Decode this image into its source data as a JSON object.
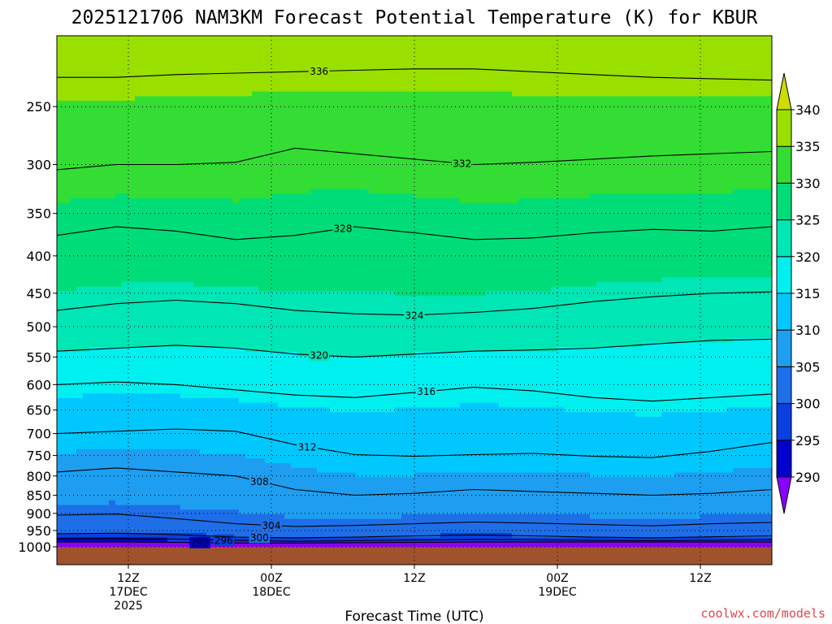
{
  "chart_data": {
    "type": "heatmap",
    "title": "2025121706 NAM3KM Forecast Potential Temperature (K) for KBUR",
    "xlabel": "Forecast Time (UTC)",
    "ylabel": "",
    "credit": "coolwx.com/models",
    "y_axis": {
      "scale": "log",
      "inverted": true,
      "ylim": [
        1000,
        200
      ],
      "ticks": [
        250,
        300,
        350,
        400,
        450,
        500,
        550,
        600,
        650,
        700,
        750,
        800,
        850,
        900,
        950,
        1000
      ]
    },
    "x_axis": {
      "ticks": [
        {
          "hour": 6,
          "line1": "12Z",
          "line2": "17DEC",
          "line3": "2025"
        },
        {
          "hour": 18,
          "line1": "00Z",
          "line2": "18DEC",
          "line3": ""
        },
        {
          "hour": 30,
          "line1": "12Z",
          "line2": "",
          "line3": ""
        },
        {
          "hour": 42,
          "line1": "00Z",
          "line2": "19DEC",
          "line3": ""
        },
        {
          "hour": 54,
          "line1": "12Z",
          "line2": "",
          "line3": ""
        }
      ],
      "xlim": [
        0,
        60
      ]
    },
    "grid": true,
    "surface_fill_color": "#a0522d",
    "colorbar": {
      "placement": "right",
      "levels": [
        290,
        295,
        300,
        305,
        310,
        315,
        320,
        325,
        330,
        335,
        340
      ],
      "colors": [
        "#8a00ff",
        "#0000cd",
        "#0a3fe0",
        "#1e6ee8",
        "#1e9ef0",
        "#00c8ff",
        "#00f0f0",
        "#00e6b4",
        "#00dd78",
        "#33dd33",
        "#99e000",
        "#ccdd00"
      ]
    },
    "contour_interval": 2,
    "contours": [
      {
        "theta": 292,
        "label": "292",
        "label_hour": 12,
        "p": [
          985,
          985,
          986,
          988,
          988,
          987,
          986,
          985,
          985,
          985,
          985,
          985,
          985
        ]
      },
      {
        "theta": 296,
        "label": "296",
        "label_hour": 14,
        "p": [
          975,
          973,
          976,
          980,
          983,
          981,
          979,
          977,
          978,
          980,
          981,
          980,
          978
        ]
      },
      {
        "theta": 300,
        "label": "300",
        "label_hour": 17,
        "p": [
          960,
          958,
          962,
          970,
          972,
          970,
          966,
          963,
          966,
          970,
          972,
          969,
          966
        ]
      },
      {
        "theta": 304,
        "label": "304",
        "label_hour": 18,
        "p": [
          905,
          902,
          915,
          930,
          938,
          935,
          930,
          925,
          928,
          932,
          936,
          930,
          926
        ]
      },
      {
        "theta": 308,
        "label": "308",
        "label_hour": 17,
        "p": [
          790,
          780,
          790,
          800,
          835,
          850,
          845,
          835,
          840,
          845,
          850,
          845,
          835
        ]
      },
      {
        "theta": 312,
        "label": "312",
        "label_hour": 21,
        "p": [
          700,
          695,
          690,
          695,
          725,
          748,
          752,
          748,
          745,
          752,
          755,
          740,
          720
        ]
      },
      {
        "theta": 316,
        "label": "316",
        "label_hour": 31,
        "p": [
          600,
          595,
          600,
          610,
          620,
          625,
          615,
          605,
          612,
          625,
          632,
          625,
          618
        ]
      },
      {
        "theta": 320,
        "label": "320",
        "label_hour": 22,
        "p": [
          540,
          535,
          530,
          535,
          545,
          550,
          545,
          540,
          538,
          535,
          528,
          522,
          520
        ]
      },
      {
        "theta": 324,
        "label": "324",
        "label_hour": 30,
        "p": [
          475,
          465,
          460,
          465,
          475,
          480,
          482,
          478,
          472,
          462,
          455,
          450,
          448
        ]
      },
      {
        "theta": 328,
        "label": "328",
        "label_hour": 24,
        "p": [
          375,
          365,
          370,
          380,
          375,
          365,
          372,
          380,
          378,
          372,
          368,
          370,
          365
        ]
      },
      {
        "theta": 332,
        "label": "332",
        "label_hour": 34,
        "p": [
          305,
          300,
          300,
          298,
          285,
          290,
          295,
          300,
          298,
          295,
          292,
          290,
          288
        ]
      },
      {
        "theta": 336,
        "label": "336",
        "label_hour": 22,
        "p": [
          228,
          228,
          226,
          225,
          224,
          223,
          222,
          222,
          224,
          226,
          228,
          229,
          230
        ]
      }
    ]
  }
}
